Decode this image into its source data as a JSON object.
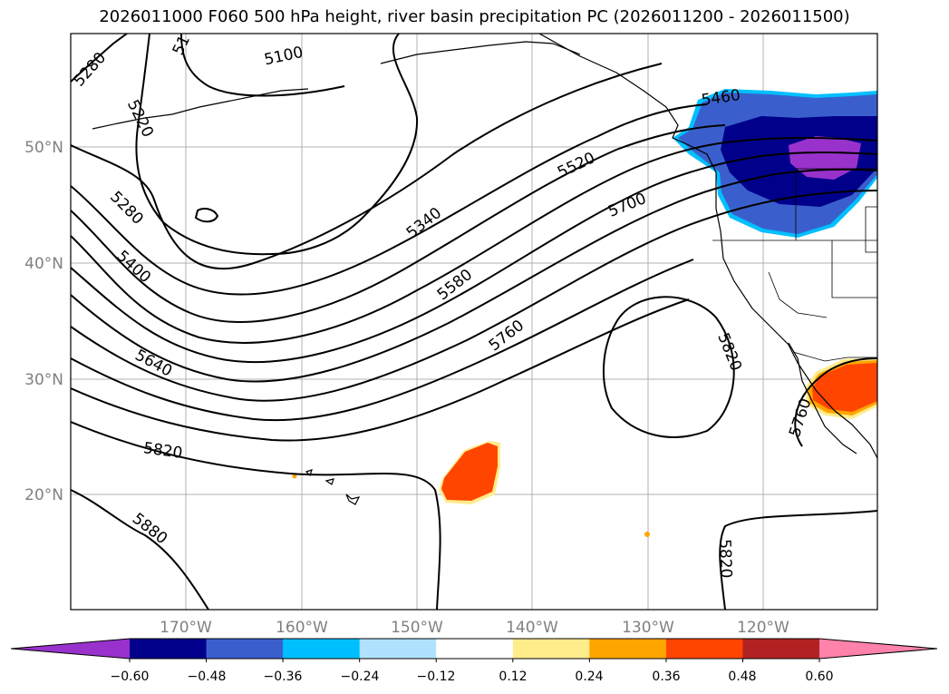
{
  "title": "2026011000 F060 500 hPa height, river basin precipitation PC (2026011200 - 2026011500)",
  "lon_ticks": [
    "170°W",
    "160°W",
    "150°W",
    "140°W",
    "130°W",
    "120°W"
  ],
  "lat_ticks": [
    "50°N",
    "40°N",
    "30°N",
    "20°N"
  ],
  "contour_labels": [
    "5100",
    "5280",
    "5220",
    "51",
    "5280",
    "5400",
    "5640",
    "5820",
    "5880",
    "5340",
    "5520",
    "5460",
    "5580",
    "5700",
    "5760",
    "5820",
    "5760",
    "5820"
  ],
  "colorbar": {
    "colors": [
      "#9932cc",
      "#00008b",
      "#3a5fcd",
      "#00bfff",
      "#b0e2ff",
      "#ffffff",
      "#ffec8b",
      "#ffa500",
      "#ff4500",
      "#b22222",
      "#ff82ab"
    ],
    "tick_labels": [
      "−0.60",
      "−0.48",
      "−0.36",
      "−0.24",
      "−0.12",
      "0.12",
      "0.24",
      "0.36",
      "0.48",
      "0.60"
    ]
  }
}
